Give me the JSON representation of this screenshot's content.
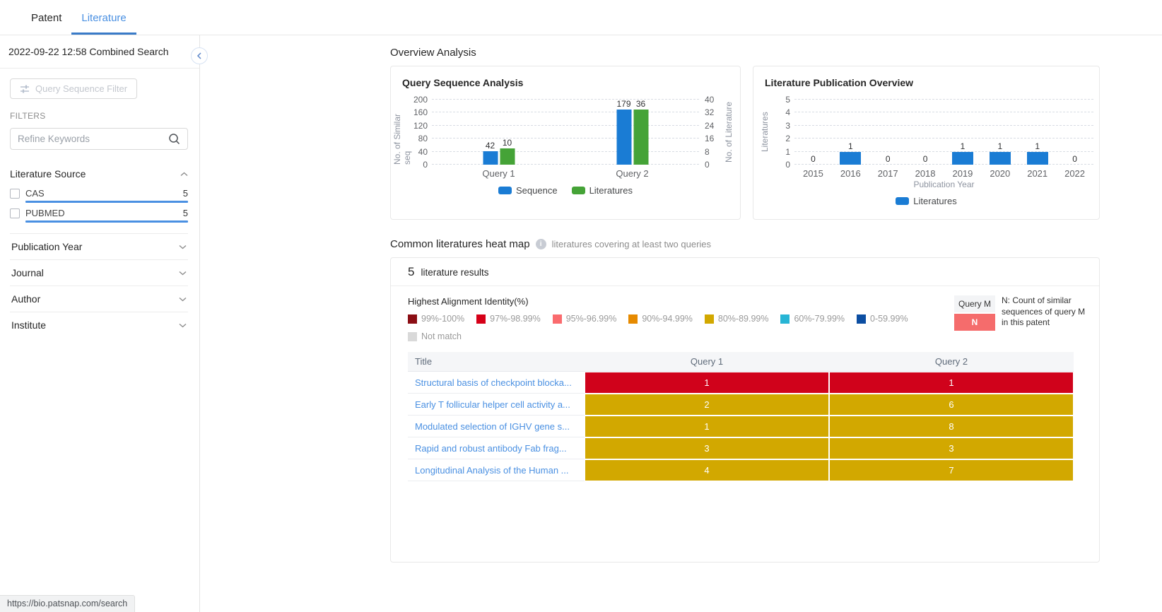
{
  "topbar": {
    "tabs": [
      {
        "label": "Patent",
        "active": false
      },
      {
        "label": "Literature",
        "active": true
      }
    ]
  },
  "sidebar": {
    "title": "2022-09-22 12:58 Combined Search",
    "query_filter_button": "Query Sequence Filter",
    "filters_label": "FILTERS",
    "keyword_placeholder": "Refine Keywords",
    "accent": "#4a90e2",
    "sections": [
      {
        "label": "Literature Source",
        "expanded": true,
        "items": [
          {
            "label": "CAS",
            "count": "5"
          },
          {
            "label": "PUBMED",
            "count": "5"
          }
        ]
      },
      {
        "label": "Publication Year",
        "expanded": false
      },
      {
        "label": "Journal",
        "expanded": false
      },
      {
        "label": "Author",
        "expanded": false
      },
      {
        "label": "Institute",
        "expanded": false
      }
    ]
  },
  "overview": {
    "title": "Overview Analysis"
  },
  "chart_data": [
    {
      "type": "bar",
      "title": "Query Sequence Analysis",
      "categories": [
        "Query 1",
        "Query 2"
      ],
      "series": [
        {
          "name": "Sequence",
          "color": "#1a7cd4",
          "axis": "left",
          "values": [
            42,
            179
          ]
        },
        {
          "name": "Literatures",
          "color": "#45a337",
          "axis": "right",
          "values": [
            10,
            36
          ]
        }
      ],
      "left_axis": {
        "label": "No. of Similar seq",
        "ticks": [
          0,
          40,
          80,
          120,
          160,
          200
        ],
        "max": 200
      },
      "right_axis": {
        "label": "No. of Literature",
        "ticks": [
          0,
          8,
          16,
          24,
          32,
          40
        ],
        "max": 40
      },
      "grid": "dashed",
      "legend_position": "bottom"
    },
    {
      "type": "bar",
      "title": "Literature Publication Overview",
      "categories": [
        "2015",
        "2016",
        "2017",
        "2018",
        "2019",
        "2020",
        "2021",
        "2022"
      ],
      "xlabel": "Publication Year",
      "series": [
        {
          "name": "Literatures",
          "color": "#1a7cd4",
          "axis": "left",
          "values": [
            0,
            1,
            0,
            0,
            1,
            1,
            1,
            0
          ]
        }
      ],
      "left_axis": {
        "label": "Literatures",
        "ticks": [
          0,
          1,
          2,
          3,
          4,
          5
        ],
        "max": 5
      },
      "grid": "dashed",
      "legend_position": "bottom"
    }
  ],
  "heatmap_section": {
    "title": "Common literatures heat map",
    "hint": "literatures covering at least two queries",
    "results_count": "5",
    "results_label": "literature results",
    "legend_title": "Highest Alignment Identity(%)",
    "legend": [
      {
        "label": "99%-100%",
        "color": "#8b0e14"
      },
      {
        "label": "97%-98.99%",
        "color": "#d60018"
      },
      {
        "label": "95%-96.99%",
        "color": "#fa6b6e"
      },
      {
        "label": "90%-94.99%",
        "color": "#e68a00"
      },
      {
        "label": "80%-89.99%",
        "color": "#d2a800"
      },
      {
        "label": "60%-79.99%",
        "color": "#27b5d5"
      },
      {
        "label": "0-59.99%",
        "color": "#0c4ea2"
      },
      {
        "label": "Not match",
        "color": "#d9d9d9"
      }
    ],
    "query_note_box": {
      "top": "Query M",
      "bottom": "N",
      "bottom_color": "#f56c6c",
      "note": "N: Count of similar sequences of query M in this patent"
    },
    "table": {
      "headers": [
        "Title",
        "Query 1",
        "Query 2"
      ],
      "rows": [
        {
          "title": "Structural basis of checkpoint blocka...",
          "values": [
            "1",
            "1"
          ],
          "color": "#d0021b"
        },
        {
          "title": "Early T follicular helper cell activity a...",
          "values": [
            "2",
            "6"
          ],
          "color": "#d2a800"
        },
        {
          "title": "Modulated selection of IGHV gene s...",
          "values": [
            "1",
            "8"
          ],
          "color": "#d2a800"
        },
        {
          "title": "Rapid and robust antibody Fab frag...",
          "values": [
            "3",
            "3"
          ],
          "color": "#d2a800"
        },
        {
          "title": "Longitudinal Analysis of the Human ...",
          "values": [
            "4",
            "7"
          ],
          "color": "#d2a800"
        }
      ]
    }
  },
  "statusbar": {
    "url": "https://bio.patsnap.com/search"
  }
}
